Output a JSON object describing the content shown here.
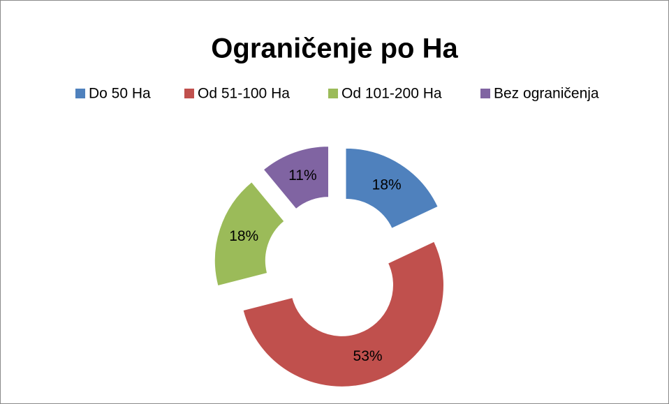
{
  "chart_data": {
    "type": "donut",
    "title": "Ograničenje po Ha",
    "categories": [
      "Do 50 Ha",
      "Od 51-100 Ha",
      "Od 101-200 Ha",
      "Bez ograničenja"
    ],
    "values": [
      18,
      53,
      18,
      11
    ],
    "value_labels": [
      "18%",
      "53%",
      "18%",
      "11%"
    ],
    "colors": [
      "#4f81bd",
      "#c0504d",
      "#9bbb59",
      "#8064a2"
    ],
    "legend": "top"
  }
}
